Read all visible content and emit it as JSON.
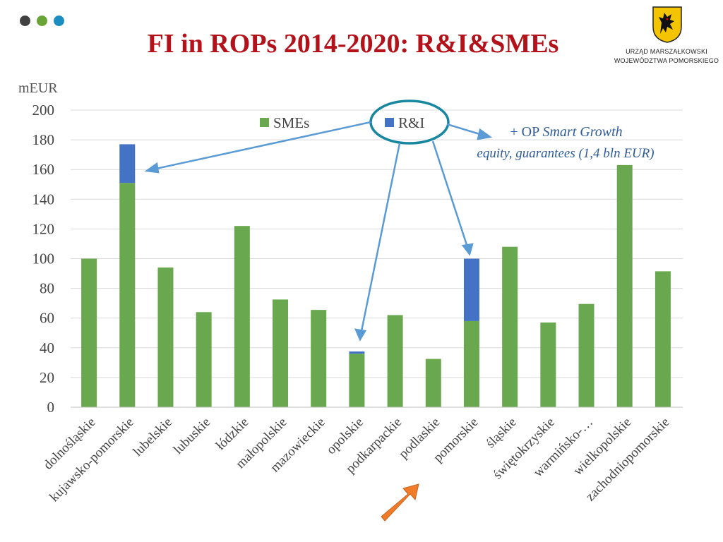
{
  "title": "FI in ROPs 2014-2020: R&I&SMEs",
  "theme_dots": [
    "#404040",
    "#6aa436",
    "#1b8dc1"
  ],
  "logo": {
    "line1": "URZĄD MARSZAŁKOWSKI",
    "line2": "WOJEWÓDZTWA POMORSKIEGO",
    "shield_icon": "griffin-shield-icon"
  },
  "annotation": {
    "line1_prefix": "+ OP ",
    "line1_italic": "Smart Growth",
    "line2": "equity, guarantees (1,4 bln EUR)"
  },
  "callout": {
    "arrow_icon": "orange-arrow-icon",
    "target": "pomorskie"
  },
  "chart_data": {
    "type": "bar",
    "stacked": true,
    "ylabel": "mEUR",
    "ylim": [
      0,
      200
    ],
    "yticks": [
      0,
      20,
      40,
      60,
      80,
      100,
      120,
      140,
      160,
      180,
      200
    ],
    "grid": true,
    "legend_position": "top",
    "categories": [
      "dolnośląskie",
      "kujawsko-pomorskie",
      "lubelskie",
      "lubuskie",
      "łódzkie",
      "małopolskie",
      "mazowieckie",
      "opolskie",
      "podkarpackie",
      "podlaskie",
      "pomorskie",
      "śląskie",
      "świętokrzyskie",
      "warmińsko-…",
      "wielkopolskie",
      "zachodniopomorskie"
    ],
    "series": [
      {
        "name": "SMEs",
        "color": "#6aa84f",
        "values": [
          100,
          151,
          94,
          64,
          122,
          72.5,
          65.5,
          36,
          62,
          32.5,
          58,
          108,
          57,
          69.5,
          163,
          91.5
        ]
      },
      {
        "name": "R&I",
        "color": "#4472c4",
        "values": [
          0,
          26,
          0,
          0,
          0,
          0,
          0,
          1.5,
          0,
          0,
          42,
          0,
          0,
          0,
          0,
          0
        ]
      }
    ]
  }
}
